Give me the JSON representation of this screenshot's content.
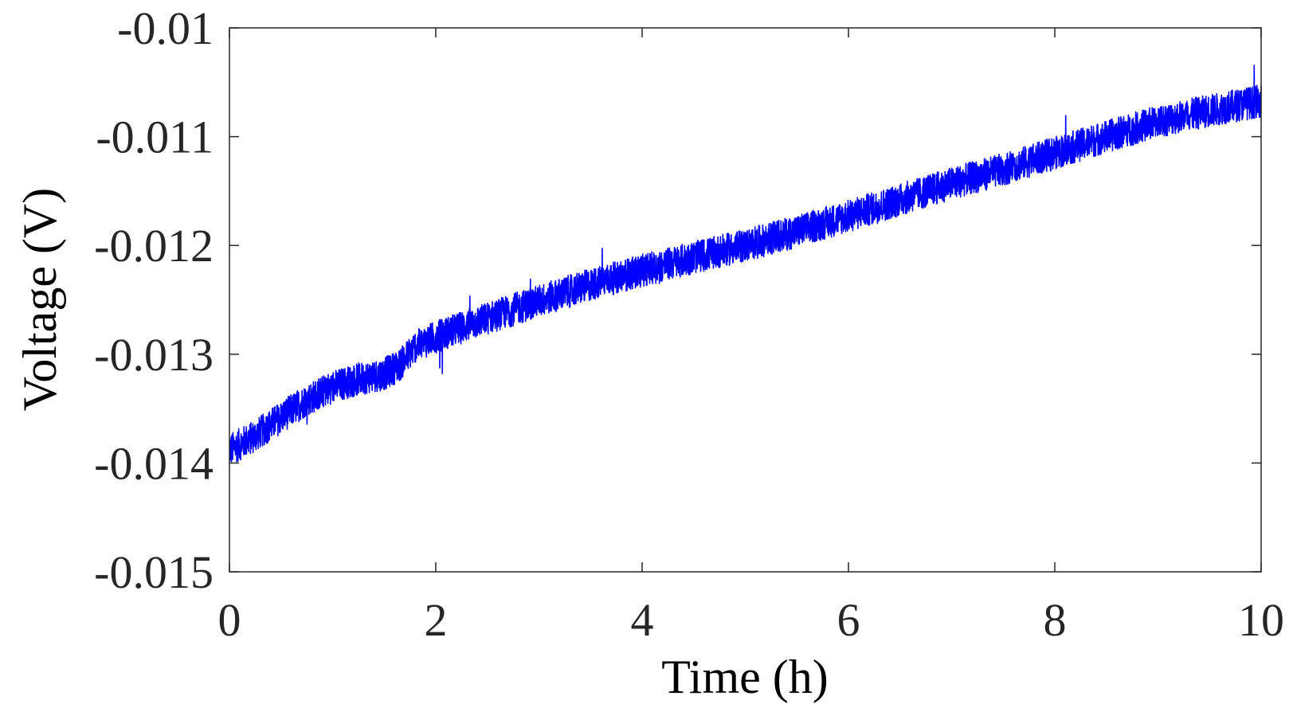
{
  "chart_data": {
    "type": "line",
    "xlabel": "Time (h)",
    "ylabel": "Voltage (V)",
    "xlim": [
      0,
      10
    ],
    "ylim": [
      -0.015,
      -0.01
    ],
    "xticks": [
      0,
      2,
      4,
      6,
      8,
      10
    ],
    "xtick_labels": [
      "0",
      "2",
      "4",
      "6",
      "8",
      "10"
    ],
    "yticks": [
      -0.015,
      -0.014,
      -0.013,
      -0.012,
      -0.011,
      -0.01
    ],
    "ytick_labels": [
      "-0.015",
      "-0.014",
      "-0.013",
      "-0.012",
      "-0.011",
      "-0.01"
    ],
    "grid": false,
    "series": [
      {
        "color": "#0000ff",
        "noise_band": 0.00015,
        "x": [
          0,
          0.25,
          0.5,
          0.75,
          1.0,
          1.25,
          1.5,
          1.65,
          1.8,
          2.0,
          2.5,
          3.0,
          3.5,
          4.0,
          4.5,
          5.0,
          5.5,
          6.0,
          6.5,
          7.0,
          7.5,
          8.0,
          8.5,
          9.0,
          9.5,
          10.0
        ],
        "y": [
          -0.01388,
          -0.01375,
          -0.01358,
          -0.01342,
          -0.0133,
          -0.01323,
          -0.01318,
          -0.0131,
          -0.01293,
          -0.01284,
          -0.01267,
          -0.01251,
          -0.01236,
          -0.01223,
          -0.01211,
          -0.012,
          -0.01187,
          -0.01173,
          -0.01158,
          -0.01143,
          -0.0113,
          -0.01115,
          -0.011,
          -0.01086,
          -0.01076,
          -0.01067
        ]
      }
    ]
  }
}
